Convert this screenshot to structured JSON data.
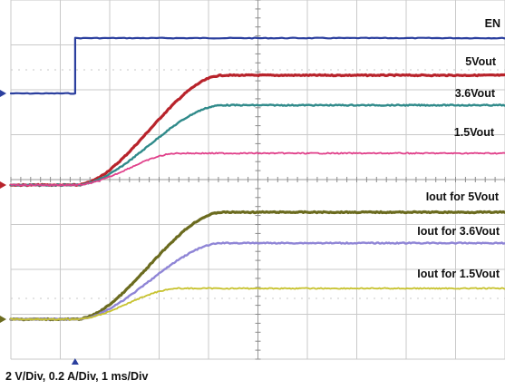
{
  "caption": "2 V/Div, 0.2 A/Div, 1 ms/Div",
  "chart_data": {
    "type": "line",
    "title": "",
    "xlabel": "",
    "ylabel": "",
    "x_unit": "ms",
    "x_range": [
      -1.3,
      8.7
    ],
    "divisions": {
      "horizontal": 10,
      "vertical": 8
    },
    "grid": true,
    "legend": "inline labels at right",
    "scale": "2 V/Div, 0.2 A/Div, 1 ms/Div",
    "series": [
      {
        "name": "EN",
        "color": "#2b3f9e",
        "kind": "step",
        "unit": "V",
        "low": 0.0,
        "high": 4.4,
        "step_at_ms": 0.0
      },
      {
        "name": "5Vout",
        "color": "#b8232b",
        "kind": "rise",
        "unit": "V",
        "final": 5.0,
        "start_ms": 0.0,
        "end_ms": 3.0
      },
      {
        "name": "3.6Vout",
        "color": "#2f8a8a",
        "kind": "rise",
        "unit": "V",
        "final": 3.6,
        "start_ms": 0.0,
        "end_ms": 3.0
      },
      {
        "name": "1.5Vout",
        "color": "#e0408a",
        "kind": "rise",
        "unit": "V",
        "final": 1.5,
        "start_ms": 0.0,
        "end_ms": 2.1
      },
      {
        "name": "Iout for 5Vout",
        "color": "#6b6b1f",
        "kind": "rise",
        "unit": "A",
        "final": 0.47,
        "start_ms": 0.0,
        "end_ms": 3.0
      },
      {
        "name": "Iout for 3.6Vout",
        "color": "#8f85d6",
        "kind": "rise",
        "unit": "A",
        "final": 0.34,
        "start_ms": 0.0,
        "end_ms": 3.0
      },
      {
        "name": "Iout for 1.5Vout",
        "color": "#c7c22e",
        "kind": "rise",
        "unit": "A",
        "final": 0.14,
        "start_ms": 0.0,
        "end_ms": 2.1
      }
    ]
  },
  "labels": {
    "en": "EN",
    "v5": "5Vout",
    "v36": "3.6Vout",
    "v15": "1.5Vout",
    "i5": "Iout for 5Vout",
    "i36": "Iout for 3.6Vout",
    "i15": "Iout for 1.5Vout"
  }
}
